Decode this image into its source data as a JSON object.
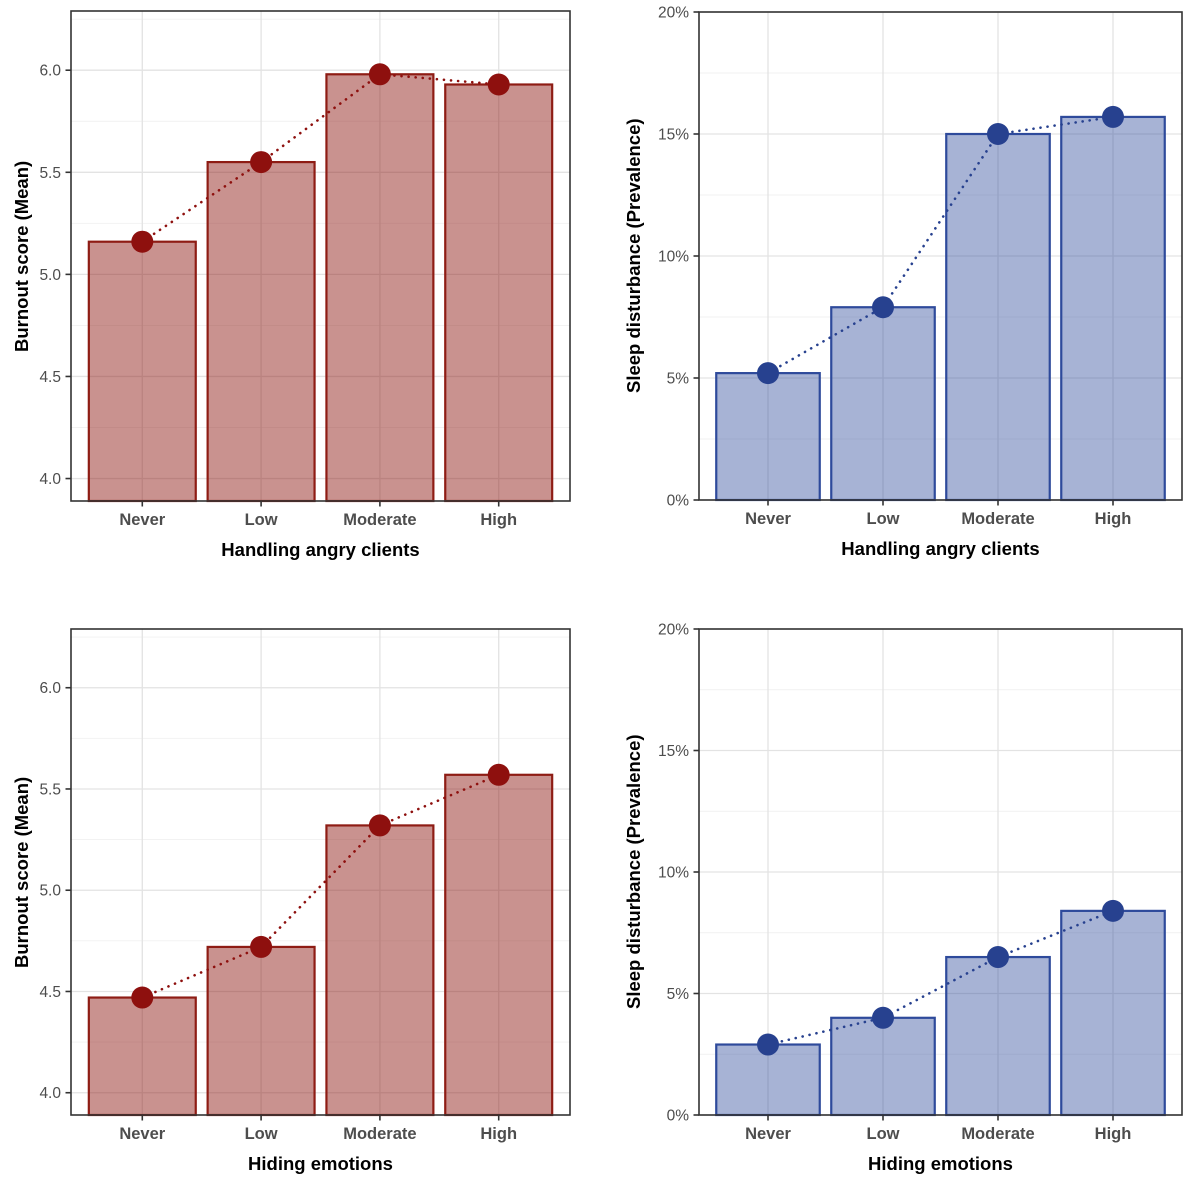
{
  "styles": {
    "background": "#ffffff",
    "grid_major": "#e3e3e3",
    "grid_minor": "#f1f1f1",
    "panel_border": "#333333",
    "tick_color": "#333333",
    "tick_label_color": "#4d4d4d",
    "axis_title_color": "#000000"
  },
  "chart_data": [
    {
      "id": "burnout-by-handling-angry-clients",
      "type": "bar",
      "overlay": "point-line-dotted",
      "categories": [
        "Never",
        "Low",
        "Moderate",
        "High"
      ],
      "values": [
        5.16,
        5.55,
        5.98,
        5.93
      ],
      "title": "",
      "xlabel": "Handling angry clients",
      "ylabel": "Burnout score (Mean)",
      "ylim": [
        3.89,
        6.29
      ],
      "yticks": [
        4.0,
        4.5,
        5.0,
        5.5,
        6.0
      ],
      "ytick_labels": [
        "4.0",
        "4.5",
        "5.0",
        "5.5",
        "6.0"
      ],
      "yticks_minor": [
        4.25,
        4.75,
        5.25,
        5.75,
        6.25
      ],
      "grid": true,
      "legend": "none",
      "colors": {
        "bar_stroke": "#8e1c14",
        "bar_fill_alpha": 0.48,
        "point": "#8e100e",
        "line": "#8e100e"
      }
    },
    {
      "id": "sleep-disturbance-by-handling-angry-clients",
      "type": "bar",
      "overlay": "point-line-dotted",
      "categories": [
        "Never",
        "Low",
        "Moderate",
        "High"
      ],
      "values": [
        5.2,
        7.9,
        15.0,
        15.7
      ],
      "title": "",
      "xlabel": "Handling angry clients",
      "ylabel": "Sleep disturbance (Prevalence)",
      "ylim": [
        0,
        20
      ],
      "yticks": [
        0,
        5,
        10,
        15,
        20
      ],
      "ytick_labels": [
        "0%",
        "5%",
        "10%",
        "15%",
        "20%"
      ],
      "yticks_minor": [
        2.5,
        7.5,
        12.5,
        17.5
      ],
      "grid": true,
      "legend": "none",
      "colors": {
        "bar_stroke": "#2e4a9b",
        "bar_fill_alpha": 0.42,
        "point": "#27418f",
        "line": "#27418f"
      }
    },
    {
      "id": "burnout-by-hiding-emotions",
      "type": "bar",
      "overlay": "point-line-dotted",
      "categories": [
        "Never",
        "Low",
        "Moderate",
        "High"
      ],
      "values": [
        4.47,
        4.72,
        5.32,
        5.57
      ],
      "title": "",
      "xlabel": "Hiding emotions",
      "ylabel": "Burnout score (Mean)",
      "ylim": [
        3.89,
        6.29
      ],
      "yticks": [
        4.0,
        4.5,
        5.0,
        5.5,
        6.0
      ],
      "ytick_labels": [
        "4.0",
        "4.5",
        "5.0",
        "5.5",
        "6.0"
      ],
      "yticks_minor": [
        4.25,
        4.75,
        5.25,
        5.75,
        6.25
      ],
      "grid": true,
      "legend": "none",
      "colors": {
        "bar_stroke": "#8e1c14",
        "bar_fill_alpha": 0.48,
        "point": "#8e100e",
        "line": "#8e100e"
      }
    },
    {
      "id": "sleep-disturbance-by-hiding-emotions",
      "type": "bar",
      "overlay": "point-line-dotted",
      "categories": [
        "Never",
        "Low",
        "Moderate",
        "High"
      ],
      "values": [
        2.9,
        4.0,
        6.5,
        8.4
      ],
      "title": "",
      "xlabel": "Hiding emotions",
      "ylabel": "Sleep disturbance (Prevalence)",
      "ylim": [
        0,
        20
      ],
      "yticks": [
        0,
        5,
        10,
        15,
        20
      ],
      "ytick_labels": [
        "0%",
        "5%",
        "10%",
        "15%",
        "20%"
      ],
      "yticks_minor": [
        2.5,
        7.5,
        12.5,
        17.5
      ],
      "grid": true,
      "legend": "none",
      "colors": {
        "bar_stroke": "#2e4a9b",
        "bar_fill_alpha": 0.42,
        "point": "#27418f",
        "line": "#27418f"
      }
    }
  ]
}
